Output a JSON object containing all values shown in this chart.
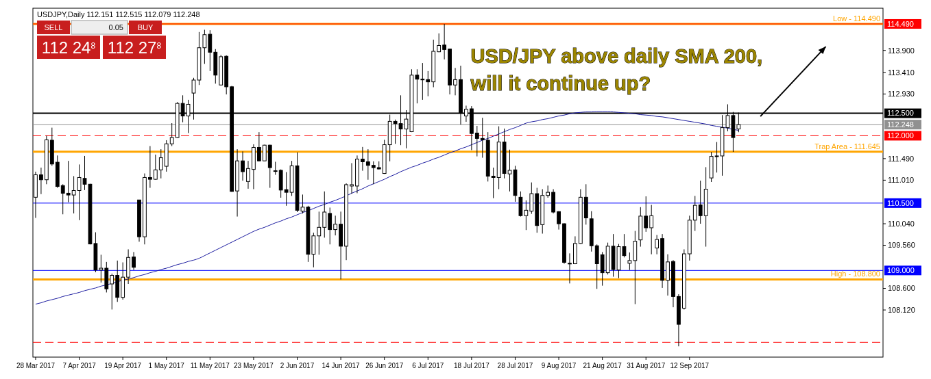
{
  "chart_data": {
    "type": "candlestick",
    "title": "USDJPY,Daily  112.151 112.515 112.079 112.248",
    "categories": [
      "28 Mar 2017",
      null,
      null,
      null,
      null,
      null,
      null,
      null,
      "7 Apr 2017",
      null,
      null,
      null,
      null,
      null,
      null,
      null,
      "19 Apr 2017",
      null,
      null,
      null,
      null,
      null,
      null,
      null,
      "1 May 2017",
      null,
      null,
      null,
      null,
      null,
      null,
      null,
      "11 May 2017",
      null,
      null,
      null,
      null,
      null,
      null,
      null,
      "23 May 2017",
      null,
      null,
      null,
      null,
      null,
      null,
      null,
      "2 Jun 2017",
      null,
      null,
      null,
      null,
      null,
      null,
      null,
      "14 Jun 2017",
      null,
      null,
      null,
      null,
      null,
      null,
      null,
      "26 Jun 2017",
      null,
      null,
      null,
      null,
      null,
      null,
      null,
      "6 Jul 2017",
      null,
      null,
      null,
      null,
      null,
      null,
      null,
      "18 Jul 2017",
      null,
      null,
      null,
      null,
      null,
      null,
      null,
      "28 Jul 2017",
      null,
      null,
      null,
      null,
      null,
      null,
      null,
      "9 Aug 2017",
      null,
      null,
      null,
      null,
      null,
      null,
      null,
      "21 Aug 2017",
      null,
      null,
      null,
      null,
      null,
      null,
      null,
      "31 Aug 2017",
      null,
      null,
      null,
      null,
      null,
      null,
      null,
      "12 Sep 2017",
      null,
      null,
      null,
      null,
      null,
      null,
      null,
      null,
      null
    ],
    "ohlc": [
      [
        110.63,
        111.2,
        110.17,
        111.13
      ],
      [
        111.13,
        111.29,
        110.7,
        111.02
      ],
      [
        111.02,
        112.0,
        110.92,
        111.91
      ],
      [
        111.9,
        112.18,
        111.33,
        111.37
      ],
      [
        111.41,
        111.56,
        110.84,
        110.87
      ],
      [
        110.89,
        110.92,
        110.25,
        110.72
      ],
      [
        110.72,
        111.44,
        110.52,
        110.68
      ],
      [
        110.68,
        111.1,
        110.27,
        110.78
      ],
      [
        110.78,
        111.36,
        110.12,
        111.07
      ],
      [
        111.05,
        111.55,
        110.79,
        110.92
      ],
      [
        110.92,
        110.93,
        109.58,
        109.59
      ],
      [
        109.6,
        109.85,
        108.96,
        109.01
      ],
      [
        109.01,
        109.35,
        108.73,
        109.05
      ],
      [
        109.05,
        109.19,
        108.51,
        108.59
      ],
      [
        108.7,
        108.93,
        108.13,
        108.89
      ],
      [
        108.89,
        109.22,
        108.3,
        108.4
      ],
      [
        108.4,
        109.18,
        108.35,
        108.85
      ],
      [
        108.85,
        109.47,
        108.7,
        109.29
      ],
      [
        109.3,
        109.41,
        109.01,
        109.07
      ],
      [
        110.57,
        110.57,
        109.64,
        109.75
      ],
      [
        109.75,
        111.16,
        109.58,
        111.07
      ],
      [
        111.07,
        111.77,
        110.84,
        111.03
      ],
      [
        111.03,
        111.58,
        111.02,
        111.24
      ],
      [
        111.24,
        111.7,
        111.05,
        111.51
      ],
      [
        111.32,
        111.9,
        111.2,
        111.82
      ],
      [
        111.82,
        112.28,
        111.77,
        111.96
      ],
      [
        111.96,
        112.75,
        111.95,
        112.72
      ],
      [
        112.72,
        112.9,
        112.3,
        112.44
      ],
      [
        112.44,
        112.8,
        112.06,
        112.7
      ],
      [
        112.95,
        113.29,
        112.36,
        113.24
      ],
      [
        113.24,
        114.31,
        113.13,
        113.96
      ],
      [
        113.96,
        114.36,
        113.6,
        114.25
      ],
      [
        114.26,
        114.35,
        113.44,
        113.86
      ],
      [
        113.86,
        113.93,
        113.16,
        113.35
      ],
      [
        113.13,
        113.8,
        113.12,
        113.76
      ],
      [
        113.77,
        113.79,
        112.92,
        113.09
      ],
      [
        113.09,
        113.11,
        110.75,
        110.76
      ],
      [
        110.77,
        111.7,
        110.2,
        111.44
      ],
      [
        111.44,
        111.65,
        111.0,
        111.2
      ],
      [
        110.98,
        111.44,
        110.82,
        111.27
      ],
      [
        111.25,
        111.81,
        110.81,
        111.74
      ],
      [
        111.74,
        112.08,
        111.43,
        111.44
      ],
      [
        111.44,
        111.8,
        111.44,
        111.79
      ],
      [
        111.79,
        111.8,
        110.84,
        111.29
      ],
      [
        111.22,
        111.42,
        111.13,
        111.21
      ],
      [
        111.23,
        111.25,
        110.62,
        110.79
      ],
      [
        110.8,
        111.19,
        110.44,
        110.74
      ],
      [
        110.74,
        111.44,
        110.66,
        111.33
      ],
      [
        111.33,
        111.63,
        110.3,
        110.34
      ],
      [
        110.32,
        110.69,
        110.27,
        110.41
      ],
      [
        110.41,
        110.44,
        109.19,
        109.36
      ],
      [
        109.36,
        109.84,
        109.07,
        109.77
      ],
      [
        109.77,
        110.31,
        109.35,
        109.96
      ],
      [
        109.96,
        110.76,
        109.73,
        110.3
      ],
      [
        110.27,
        110.4,
        109.58,
        109.91
      ],
      [
        109.91,
        110.22,
        109.78,
        110.03
      ],
      [
        110.03,
        110.31,
        108.8,
        109.54
      ],
      [
        109.54,
        110.94,
        109.23,
        110.91
      ],
      [
        110.88,
        111.39,
        110.71,
        110.91
      ],
      [
        110.88,
        111.56,
        110.72,
        111.48
      ],
      [
        111.48,
        111.75,
        111.22,
        111.42
      ],
      [
        111.42,
        111.7,
        111.02,
        111.34
      ],
      [
        111.34,
        111.43,
        110.92,
        111.29
      ],
      [
        111.29,
        111.43,
        111.25,
        111.26
      ],
      [
        111.16,
        111.91,
        111.15,
        111.8
      ],
      [
        111.8,
        112.47,
        111.43,
        112.32
      ],
      [
        112.32,
        112.36,
        111.82,
        112.27
      ],
      [
        112.27,
        112.9,
        111.79,
        112.15
      ],
      [
        112.15,
        112.57,
        111.72,
        112.37
      ],
      [
        112.09,
        113.48,
        112.08,
        113.35
      ],
      [
        113.35,
        113.48,
        112.72,
        113.26
      ],
      [
        113.26,
        113.62,
        112.8,
        113.25
      ],
      [
        113.25,
        113.44,
        112.88,
        113.2
      ],
      [
        113.2,
        114.14,
        113.08,
        113.88
      ],
      [
        113.87,
        114.28,
        113.86,
        114.01
      ],
      [
        114.02,
        114.49,
        113.7,
        113.92
      ],
      [
        113.93,
        113.94,
        112.92,
        113.13
      ],
      [
        113.13,
        113.51,
        112.9,
        113.25
      ],
      [
        113.25,
        113.56,
        112.25,
        112.51
      ],
      [
        112.44,
        112.67,
        112.31,
        112.59
      ],
      [
        112.6,
        112.66,
        111.68,
        112.05
      ],
      [
        112.06,
        112.22,
        111.54,
        111.94
      ],
      [
        111.94,
        112.4,
        111.51,
        111.91
      ],
      [
        111.9,
        112.08,
        110.98,
        111.1
      ],
      [
        111.1,
        111.29,
        110.61,
        111.07
      ],
      [
        111.07,
        112.21,
        110.81,
        111.86
      ],
      [
        111.86,
        112.16,
        111.05,
        111.16
      ],
      [
        111.15,
        111.69,
        110.76,
        111.23
      ],
      [
        111.24,
        111.33,
        110.53,
        110.67
      ],
      [
        110.63,
        110.76,
        110.2,
        110.22
      ],
      [
        110.22,
        110.56,
        109.9,
        110.34
      ],
      [
        110.32,
        110.96,
        110.26,
        110.71
      ],
      [
        110.71,
        110.84,
        109.84,
        110.0
      ],
      [
        110.02,
        110.81,
        109.82,
        110.67
      ],
      [
        110.67,
        110.89,
        110.62,
        110.74
      ],
      [
        110.74,
        110.81,
        110.27,
        110.3
      ],
      [
        110.31,
        110.32,
        109.91,
        110.04
      ],
      [
        110.04,
        110.05,
        109.15,
        109.18
      ],
      [
        109.16,
        109.38,
        108.71,
        109.15
      ],
      [
        109.15,
        109.76,
        109.14,
        109.6
      ],
      [
        109.6,
        110.81,
        109.59,
        110.63
      ],
      [
        110.63,
        110.92,
        110.02,
        110.17
      ],
      [
        110.15,
        110.32,
        109.42,
        109.55
      ],
      [
        109.55,
        109.58,
        108.59,
        109.15
      ],
      [
        109.35,
        109.41,
        108.66,
        108.95
      ],
      [
        108.95,
        109.62,
        108.91,
        109.54
      ],
      [
        109.54,
        109.81,
        108.86,
        109.02
      ],
      [
        109.01,
        109.59,
        108.83,
        109.53
      ],
      [
        109.53,
        109.81,
        109.29,
        109.33
      ],
      [
        109.16,
        109.4,
        109.01,
        109.22
      ],
      [
        109.22,
        109.88,
        108.25,
        109.65
      ],
      [
        109.68,
        110.41,
        109.53,
        110.21
      ],
      [
        110.21,
        110.65,
        109.86,
        109.95
      ],
      [
        109.95,
        110.46,
        109.36,
        110.22
      ],
      [
        109.5,
        109.79,
        109.36,
        109.69
      ],
      [
        109.71,
        109.81,
        108.61,
        108.78
      ],
      [
        108.78,
        109.36,
        108.44,
        109.19
      ],
      [
        109.2,
        109.23,
        108.18,
        108.42
      ],
      [
        108.42,
        108.47,
        107.31,
        107.8
      ],
      [
        108.16,
        109.47,
        108.13,
        109.37
      ],
      [
        109.37,
        110.22,
        109.22,
        110.12
      ],
      [
        110.12,
        110.66,
        109.88,
        110.45
      ],
      [
        110.46,
        111.0,
        110.04,
        110.22
      ],
      [
        110.22,
        111.3,
        109.53,
        110.81
      ],
      [
        111.06,
        111.64,
        110.97,
        111.54
      ],
      [
        111.55,
        111.86,
        111.18,
        111.54
      ],
      [
        111.55,
        112.46,
        111.11,
        112.18
      ],
      [
        112.18,
        112.7,
        112.1,
        112.45
      ],
      [
        112.45,
        112.53,
        111.64,
        111.96
      ],
      [
        112.151,
        112.515,
        112.079,
        112.248
      ]
    ],
    "series": [
      {
        "type": "line",
        "color": "#1c1ca0",
        "values": [
          108.25,
          108.28,
          108.32,
          108.35,
          108.38,
          108.42,
          108.45,
          108.48,
          108.51,
          108.55,
          108.58,
          108.61,
          108.65,
          108.68,
          108.71,
          108.75,
          108.78,
          108.81,
          108.84,
          108.88,
          108.91,
          108.95,
          108.98,
          109.02,
          109.05,
          109.09,
          109.13,
          109.16,
          109.2,
          109.23,
          109.27,
          109.33,
          109.39,
          109.45,
          109.51,
          109.57,
          109.63,
          109.69,
          109.75,
          109.81,
          109.87,
          109.92,
          109.96,
          110.01,
          110.06,
          110.1,
          110.15,
          110.19,
          110.24,
          110.29,
          110.33,
          110.38,
          110.43,
          110.47,
          110.52,
          110.56,
          110.61,
          110.66,
          110.72,
          110.77,
          110.82,
          110.88,
          110.93,
          110.98,
          111.03,
          111.09,
          111.14,
          111.2,
          111.25,
          111.3,
          111.34,
          111.39,
          111.43,
          111.48,
          111.52,
          111.57,
          111.62,
          111.66,
          111.71,
          111.75,
          111.8,
          111.85,
          111.9,
          111.94,
          111.99,
          112.04,
          112.09,
          112.14,
          112.18,
          112.23,
          112.28,
          112.31,
          112.33,
          112.36,
          112.38,
          112.41,
          112.44,
          112.46,
          112.49,
          112.51,
          112.52,
          112.53,
          112.53,
          112.54,
          112.54,
          112.54,
          112.53,
          112.52,
          112.51,
          112.5,
          112.49,
          112.47,
          112.46,
          112.45,
          112.43,
          112.42,
          112.4,
          112.38,
          112.36,
          112.34,
          112.32,
          112.3,
          112.28,
          112.26,
          112.23,
          112.21,
          112.19,
          112.17,
          112.14,
          112.12
        ]
      }
    ],
    "ylim": [
      107.07,
      114.84
    ],
    "yticks": [
      {
        "value": 108.12,
        "label": "108.120"
      },
      {
        "value": 108.6,
        "label": "108.600"
      },
      {
        "value": 109.56,
        "label": "109.560"
      },
      {
        "value": 110.04,
        "label": "110.040"
      },
      {
        "value": 111.01,
        "label": "111.010"
      },
      {
        "value": 111.49,
        "label": "111.490"
      },
      {
        "value": 112.93,
        "label": "112.930"
      },
      {
        "value": 113.41,
        "label": "113.410"
      },
      {
        "value": 113.9,
        "label": "113.900"
      }
    ],
    "ref_lines": [
      {
        "axis": "y",
        "value": 114.49,
        "label": "114.490",
        "color": "#ff0000"
      },
      {
        "axis": "y",
        "value": 114.49,
        "label": "Low - 114.490",
        "color": "#ffa500"
      },
      {
        "axis": "y",
        "value": 112.5,
        "label": "112.500",
        "color": "#000000"
      },
      {
        "axis": "y",
        "value": 112.248,
        "label": "112.248",
        "color": "#909090"
      },
      {
        "axis": "y",
        "value": 112.0,
        "label": "112.000",
        "color": "#ff0000",
        "line_style": "dashed"
      },
      {
        "axis": "y",
        "value": 111.645,
        "label": "Trap Area - 111.645",
        "color": "#ffa500"
      },
      {
        "axis": "y",
        "value": 110.5,
        "label": "110.500",
        "color": "#0000ff"
      },
      {
        "axis": "y",
        "value": 109.0,
        "label": "109.000",
        "color": "#0000ff"
      },
      {
        "axis": "y",
        "value": 108.8,
        "label": "High - 108.800",
        "color": "#ffa500"
      },
      {
        "axis": "y",
        "value": 107.4,
        "color": "#ff0000",
        "line_style": "dashed"
      }
    ],
    "annotations": [
      "USD/JPY above daily SMA 200,",
      "will it continue up?",
      "SELL",
      "0.05",
      "BUY",
      "112 24$^{8}$",
      "112 27$^{8}$"
    ],
    "grid": false
  }
}
